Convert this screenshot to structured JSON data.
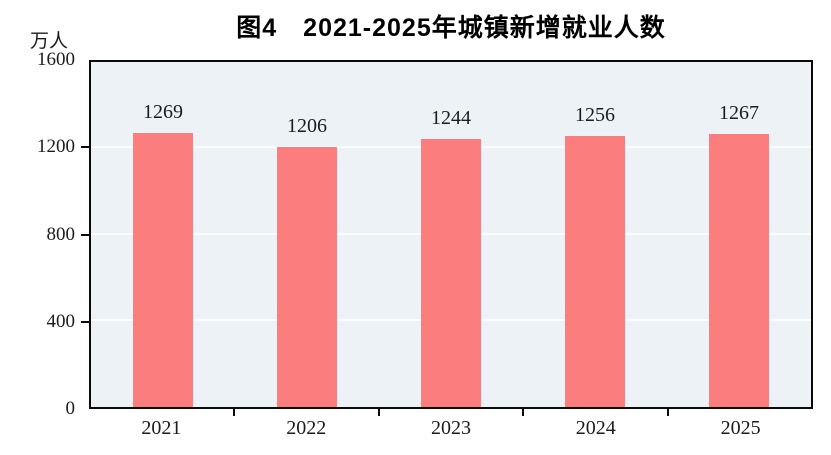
{
  "figure": {
    "title": "图4　2021-2025年城镇新增就业人数",
    "unit_label": "万人"
  },
  "chart_data": {
    "type": "bar",
    "title": "图4　2021-2025年城镇新增就业人数",
    "categories": [
      "2021",
      "2022",
      "2023",
      "2024",
      "2025"
    ],
    "values": [
      1269,
      1206,
      1244,
      1256,
      1267
    ],
    "data_labels": [
      "1269",
      "1206",
      "1244",
      "1256",
      "1267"
    ],
    "xlabel": "",
    "ylabel": "万人",
    "ylim": [
      0,
      1600
    ],
    "yticks": [
      0,
      400,
      800,
      1200,
      1600
    ],
    "grid": true,
    "legend": "none",
    "colors": {
      "bar": "#fb7d7d",
      "plot_background": "#ecf2f6",
      "gridline": "#fbfdfd",
      "frame": "#0a0a0a",
      "text": "#1c1c1c"
    }
  }
}
